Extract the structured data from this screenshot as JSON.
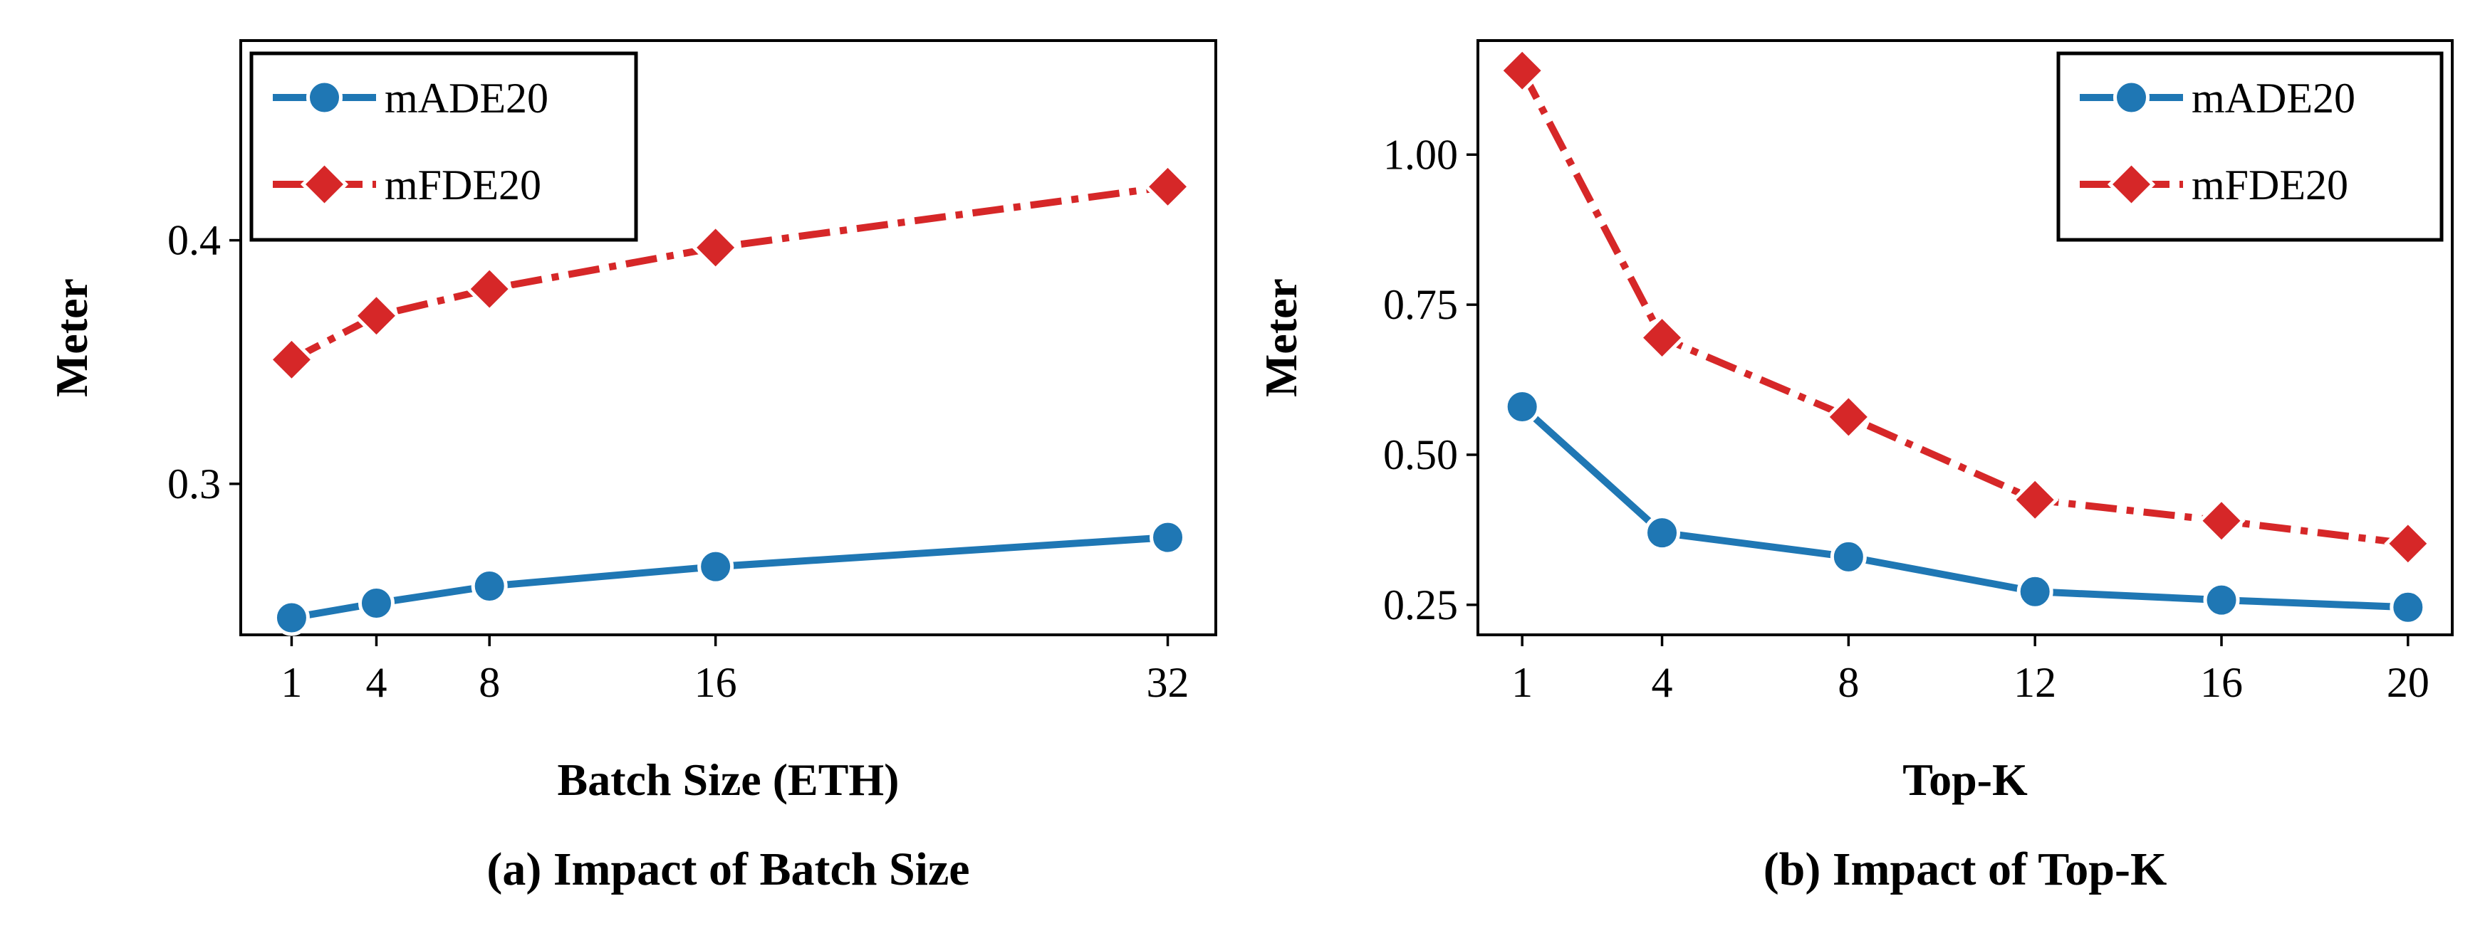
{
  "colors": {
    "made": "#1f77b4",
    "mfde": "#d62728"
  },
  "chart_data": [
    {
      "type": "line",
      "title": "(a) Impact of Batch Size",
      "xlabel": "Batch Size (ETH)",
      "ylabel": "Meter",
      "x": [
        1,
        4,
        8,
        16,
        32
      ],
      "x_ticks": [
        "1",
        "4",
        "8",
        "16",
        "32"
      ],
      "y_ticks": [
        "0.3",
        "0.4"
      ],
      "xlim": [
        -0.8,
        33.7
      ],
      "ylim": [
        0.238,
        0.482
      ],
      "legend_position": "top-left",
      "series": [
        {
          "name": "mADE20",
          "marker": "circle",
          "line": "solid",
          "values": [
            0.245,
            0.251,
            0.258,
            0.266,
            0.278
          ]
        },
        {
          "name": "mFDE20",
          "marker": "diamond",
          "line": "dashdot",
          "values": [
            0.351,
            0.369,
            0.38,
            0.397,
            0.422
          ]
        }
      ]
    },
    {
      "type": "line",
      "title": "(b) Impact of Top-K",
      "xlabel": "Top-K",
      "ylabel": "Meter",
      "x": [
        1,
        4,
        8,
        12,
        16,
        20
      ],
      "x_ticks": [
        "1",
        "4",
        "8",
        "12",
        "16",
        "20"
      ],
      "y_ticks": [
        "0.25",
        "0.50",
        "0.75",
        "1.00"
      ],
      "xlim": [
        0.05,
        20.95
      ],
      "ylim": [
        0.2,
        1.19
      ],
      "legend_position": "top-right",
      "series": [
        {
          "name": "mADE20",
          "marker": "circle",
          "line": "solid",
          "values": [
            0.58,
            0.37,
            0.33,
            0.272,
            0.258,
            0.246
          ]
        },
        {
          "name": "mFDE20",
          "marker": "diamond",
          "line": "dashdot",
          "values": [
            1.14,
            0.695,
            0.563,
            0.425,
            0.39,
            0.352
          ]
        }
      ]
    }
  ]
}
